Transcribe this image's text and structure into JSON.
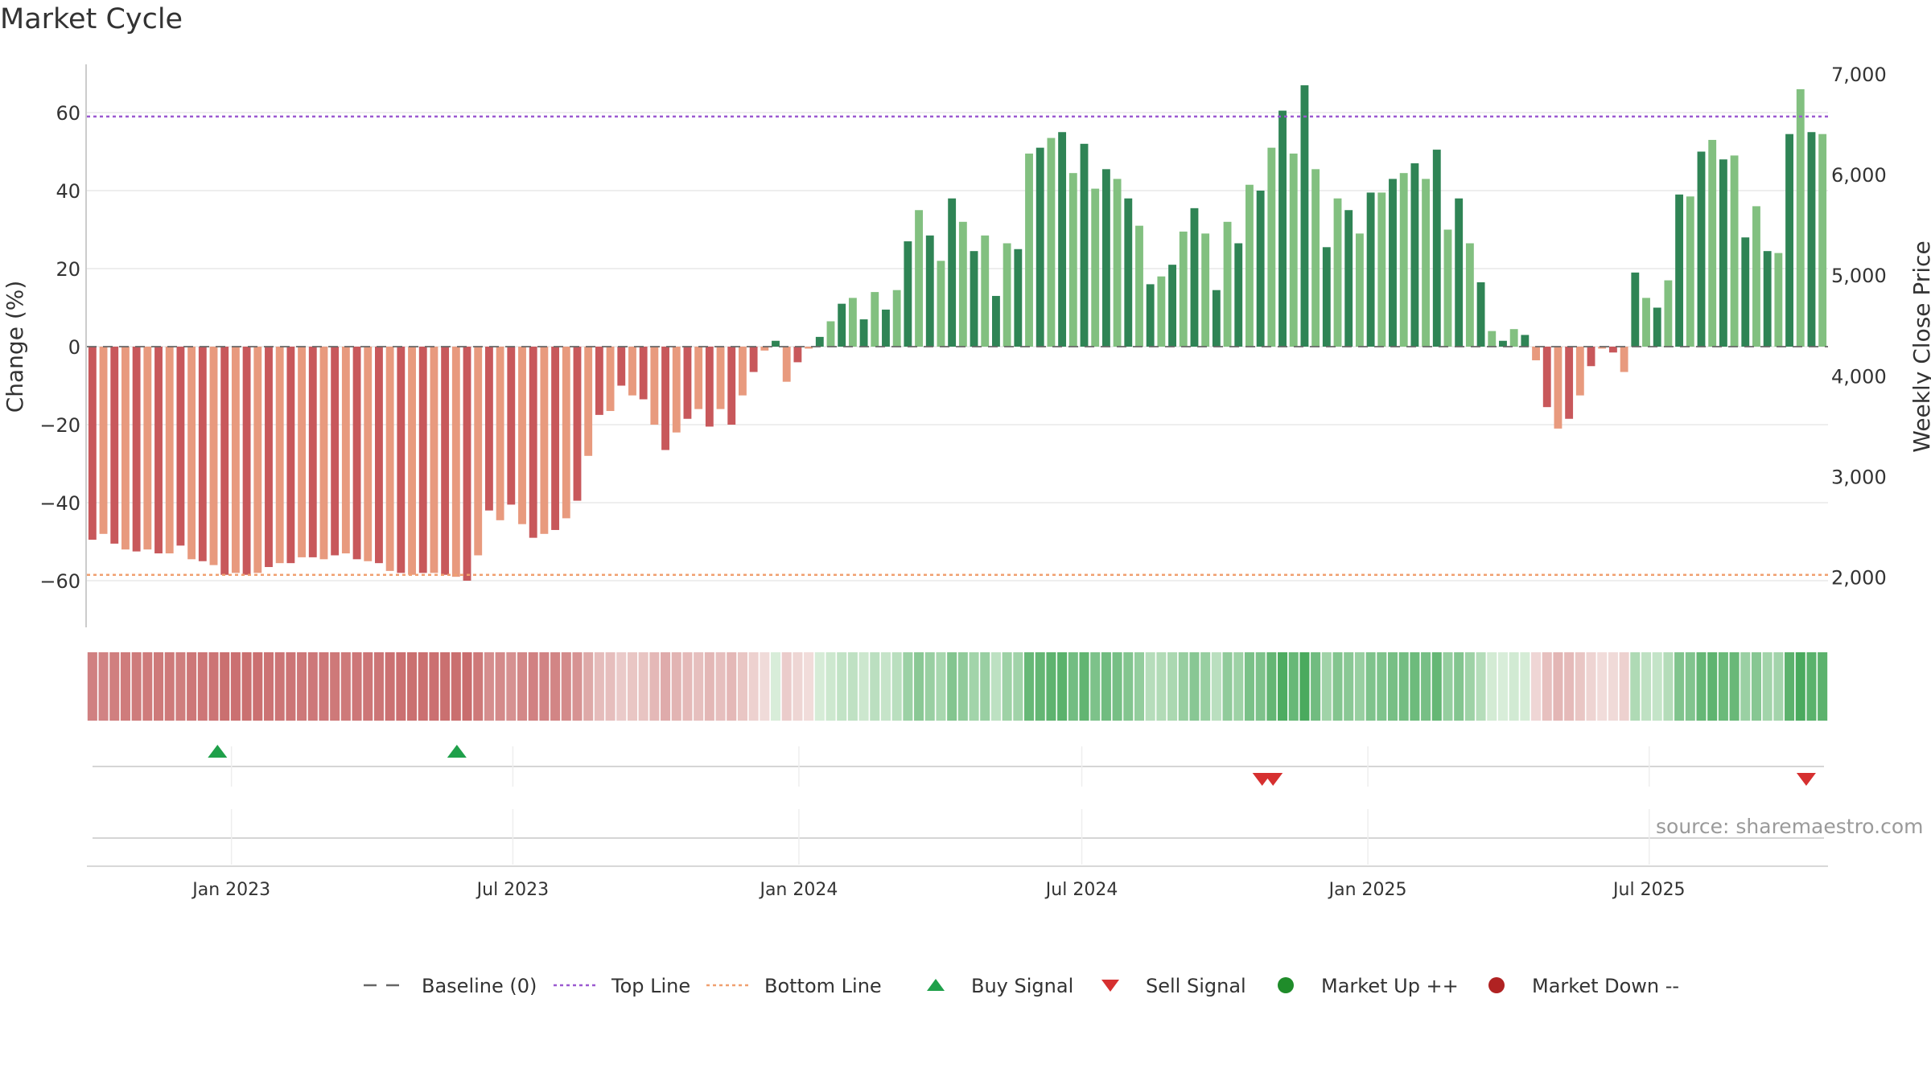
{
  "title": "Market Cycle",
  "source": "source: sharemaestro.com",
  "chart_data": {
    "type": "bar",
    "y_label": "Change (%)",
    "y2_label": "Weekly Close Price",
    "ylim": [
      -72,
      72
    ],
    "y2lim": [
      1300,
      7520
    ],
    "yticks": [
      -60,
      -40,
      -20,
      0,
      20,
      40,
      60
    ],
    "ytick_labels": [
      "−60",
      "−40",
      "−20",
      "0",
      "20",
      "40",
      "60"
    ],
    "y2ticks": [
      2000,
      3000,
      4000,
      5000,
      6000,
      7000
    ],
    "y2tick_labels": [
      "2,000",
      "3,000",
      "4,000",
      "5,000",
      "6,000",
      "7,000"
    ],
    "top_line": 59,
    "bottom_line": -58.5,
    "x_start": "2022-09-30",
    "x_end": "2025-10-24",
    "xtick_labels": [
      {
        "date": "2023-01-01",
        "label": "Jan 2023"
      },
      {
        "date": "2023-07-01",
        "label": "Jul 2023"
      },
      {
        "date": "2024-01-01",
        "label": "Jan 2024"
      },
      {
        "date": "2024-07-01",
        "label": "Jul 2024"
      },
      {
        "date": "2025-01-01",
        "label": "Jan 2025"
      },
      {
        "date": "2025-07-01",
        "label": "Jul 2025"
      }
    ],
    "values": [
      -49.5,
      -48,
      -50.5,
      -52,
      -52.5,
      -52,
      -53,
      -53,
      -51,
      -54.5,
      -55,
      -56,
      -58.5,
      -58,
      -58.5,
      -58,
      -56.5,
      -55.5,
      -55.5,
      -54,
      -54,
      -54.5,
      -53.5,
      -53,
      -54.5,
      -55,
      -55.5,
      -57.5,
      -58,
      -58.5,
      -58,
      -58,
      -58.5,
      -59,
      -60,
      -53.5,
      -42,
      -44.5,
      -40.5,
      -45.5,
      -49,
      -48,
      -47,
      -44,
      -39.5,
      -28,
      -17.5,
      -16.5,
      -10,
      -12.5,
      -13.5,
      -20,
      -26.5,
      -22,
      -18.5,
      -16,
      -20.5,
      -16,
      -20,
      -12.5,
      -6.5,
      -1,
      1.5,
      -9,
      -4,
      -0.5,
      2.5,
      6.5,
      11,
      12.5,
      7,
      14,
      9.5,
      14.5,
      27,
      35,
      28.5,
      22,
      38,
      32,
      24.5,
      28.5,
      13,
      26.5,
      25,
      49.5,
      51,
      53.5,
      55,
      44.5,
      52,
      40.5,
      45.5,
      43,
      38,
      31,
      16,
      18,
      21,
      29.5,
      35.5,
      29,
      14.5,
      32,
      26.5,
      41.5,
      40,
      51,
      60.5,
      49.5,
      67,
      45.5,
      25.5,
      38,
      35,
      29,
      39.5,
      39.5,
      43,
      44.5,
      47,
      43,
      50.5,
      30,
      38,
      26.5,
      16.5,
      4,
      1.5,
      4.5,
      3,
      -3.5,
      -15.5,
      -21,
      -18.5,
      -12.5,
      -5,
      -0.5,
      -1.5,
      -6.5,
      19,
      12.5,
      10,
      17,
      39,
      38.5,
      50,
      53,
      48,
      49,
      28,
      36,
      24.5,
      24,
      54.5,
      66,
      55,
      54.5
    ],
    "cycle_strength": [
      -49.5,
      -48,
      -50.5,
      -52,
      -52.5,
      -52,
      -53,
      -53,
      -51,
      -54.5,
      -55,
      -56,
      -58.5,
      -58,
      -58.5,
      -58,
      -56.5,
      -55.5,
      -55.5,
      -54,
      -54,
      -54.5,
      -53.5,
      -53,
      -54.5,
      -55,
      -55.5,
      -57.5,
      -58,
      -58.5,
      -58,
      -58,
      -58.5,
      -59,
      -60,
      -53.5,
      -42,
      -44.5,
      -40.5,
      -45.5,
      -49,
      -48,
      -47,
      -44,
      -39.5,
      -28,
      -17.5,
      -16.5,
      -10,
      -12.5,
      -13.5,
      -20,
      -26.5,
      -22,
      -18.5,
      -16,
      -20.5,
      -16,
      -20,
      -12.5,
      -6.5,
      -1,
      1.5,
      -9,
      -4,
      -0.5,
      2.5,
      6.5,
      11,
      12.5,
      7,
      14,
      9.5,
      14.5,
      27,
      35,
      28.5,
      22,
      38,
      32,
      24.5,
      28.5,
      13,
      26.5,
      25,
      49.5,
      51,
      53.5,
      55,
      44.5,
      52,
      40.5,
      45.5,
      43,
      38,
      31,
      16,
      18,
      21,
      29.5,
      35.5,
      29,
      14.5,
      32,
      26.5,
      41.5,
      40,
      51,
      60.5,
      49.5,
      67,
      45.5,
      25.5,
      38,
      35,
      29,
      39.5,
      39.5,
      43,
      44.5,
      47,
      43,
      50.5,
      30,
      38,
      26.5,
      16.5,
      4,
      1.5,
      4.5,
      3,
      -3.5,
      -15.5,
      -21,
      -18.5,
      -12.5,
      -5,
      -0.5,
      -1.5,
      -6.5,
      19,
      12.5,
      10,
      17,
      39,
      38.5,
      50,
      53,
      48,
      49,
      28,
      36,
      24.5,
      24,
      54.5,
      66,
      55,
      54.5
    ],
    "buy_signals": [
      "2022-12-23",
      "2023-05-26"
    ],
    "sell_signals": [
      "2024-10-25",
      "2024-11-01",
      "2025-10-10"
    ],
    "colors": {
      "down_dark": "#c8585b",
      "down_light": "#e89a7e",
      "up_dark": "#2f8455",
      "up_light": "#82c080",
      "top_line": "#9b59d0",
      "bottom_line": "#f0a070",
      "baseline": "#666666",
      "buy": "#1fa04a",
      "sell": "#d63030",
      "market_up": "#1f8c2a",
      "market_down": "#b02222"
    },
    "legend": [
      {
        "label": "Baseline (0)",
        "kind": "dash",
        "color": "#666666"
      },
      {
        "label": "Top Line",
        "kind": "dot",
        "color": "#9b59d0"
      },
      {
        "label": "Bottom Line",
        "kind": "dot",
        "color": "#f0a070"
      },
      {
        "label": "Buy Signal",
        "kind": "tri-up",
        "color": "#1fa04a"
      },
      {
        "label": "Sell Signal",
        "kind": "tri-down",
        "color": "#d63030"
      },
      {
        "label": "Market Up ++",
        "kind": "circle",
        "color": "#1f8c2a"
      },
      {
        "label": "Market Down --",
        "kind": "circle",
        "color": "#b02222"
      }
    ],
    "legend_position": "bottom-center"
  }
}
